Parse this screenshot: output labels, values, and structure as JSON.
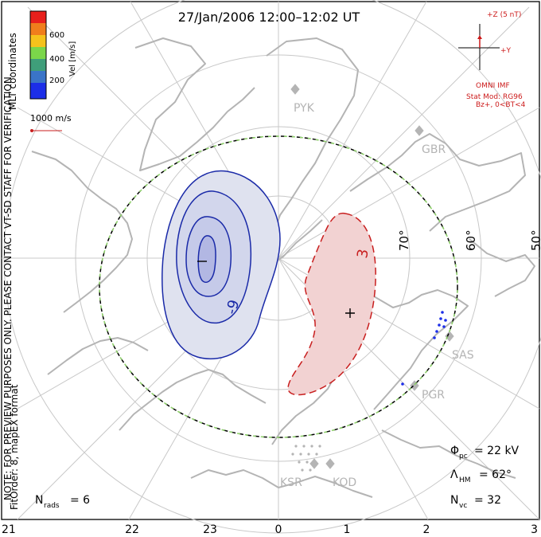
{
  "title": "27/Jan/2006 12:00–12:02 UT",
  "colorbar": {
    "label": "Vel [m/s]",
    "ticks": [
      "600",
      "400",
      "200"
    ],
    "colors": [
      "#e8201c",
      "#f07e1c",
      "#f5c21c",
      "#7bd64a",
      "#3f9e7a",
      "#3a74c8",
      "#1c2ee8"
    ]
  },
  "coord_label": "MLT coordinates",
  "vector_scale": "1000 m/s",
  "side_note": "NOTE: FOR PREVIEW PURPOSES ONLY. PLEASE CONTACT VT-SD STAFF FOR VERIFICATION.",
  "fit_note": "FitOrder: 8, mapEX format",
  "imf": {
    "z_label": "+Z (5 nT)",
    "y_label": "+Y",
    "source": "OMNI IMF",
    "model": "Stat Mod: RG96",
    "condition": "Bz+, 0<BT<4"
  },
  "latitudes": [
    "70°",
    "60°",
    "50°"
  ],
  "stations": [
    "PYK",
    "GBR",
    "SAS",
    "PGR",
    "KSR",
    "KOD"
  ],
  "contours": {
    "negative_label": "-9",
    "positive_label": "3"
  },
  "stats": {
    "phi_symbol": "Φ",
    "phi_sub": "pc",
    "phi_value": "= 22 kV",
    "lambda_symbol": "Λ",
    "lambda_sub": "HM",
    "lambda_value": "= 62°",
    "nvc_symbol": "N",
    "nvc_sub": "vc",
    "nvc_value": "= 32",
    "nrads_symbol": "N",
    "nrads_sub": "rads",
    "nrads_value": "= 6"
  },
  "mlt_ticks": [
    "21",
    "22",
    "23",
    "0",
    "1",
    "2",
    "3"
  ],
  "colors": {
    "frame": "#000000",
    "grid": "#c8c8c8",
    "coast": "#b4b4b4",
    "negative": "#1a2aa8",
    "negative_fill": "#c8cbe8",
    "positive": "#c81e1e",
    "positive_fill": "#f2d2d2",
    "imf": "#cc1a1a",
    "boundary_dash": "#8ed16a"
  }
}
